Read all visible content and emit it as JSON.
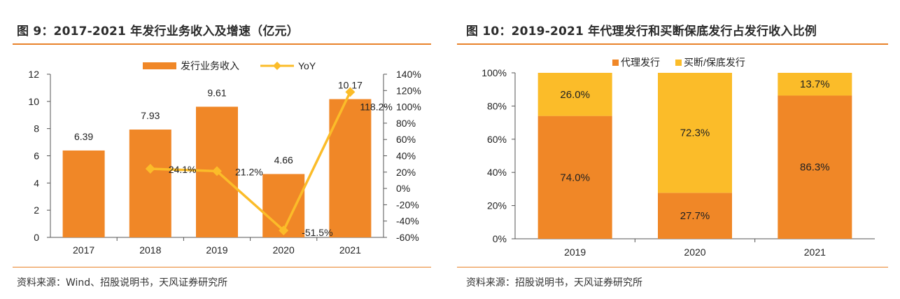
{
  "left": {
    "title": "图 9：2017-2021 年发行业务收入及增速（亿元）",
    "source": "资料来源：Wind、招股说明书，天风证券研究所",
    "colors": {
      "bar": "#f08727",
      "line": "#fbbc29",
      "axis": "#555555",
      "rule": "#e8822a"
    },
    "chart_data": {
      "type": "bar",
      "categories": [
        "2017",
        "2018",
        "2019",
        "2020",
        "2021"
      ],
      "series": [
        {
          "name": "发行业务收入",
          "type": "bar",
          "axis": "left",
          "values": [
            6.39,
            7.93,
            9.61,
            4.66,
            10.17
          ],
          "labels": [
            "6.39",
            "7.93",
            "9.61",
            "4.66",
            "10.17"
          ]
        },
        {
          "name": "YoY",
          "type": "line",
          "axis": "right",
          "values": [
            null,
            24.1,
            21.2,
            -51.5,
            118.2
          ],
          "labels": [
            "",
            "24.1%",
            "21.2%",
            "-51.5%",
            "118.2%"
          ]
        }
      ],
      "y_left": {
        "min": 0,
        "max": 12,
        "ticks": [
          "0",
          "2",
          "4",
          "6",
          "8",
          "10",
          "12"
        ]
      },
      "y_right": {
        "min": -60,
        "max": 140,
        "ticks": [
          "-60%",
          "-40%",
          "-20%",
          "0%",
          "20%",
          "40%",
          "60%",
          "80%",
          "100%",
          "120%",
          "140%"
        ]
      },
      "legend": "top-center"
    }
  },
  "right": {
    "title": "图 10：2019-2021 年代理发行和买断保底发行占发行收入比例",
    "source": "资料来源：招股说明书，天风证券研究所",
    "colors": {
      "agency": "#f08727",
      "buyout": "#fbbc29",
      "axis": "#555555",
      "rule": "#e8822a"
    },
    "chart_data": {
      "type": "bar",
      "stacked": true,
      "categories": [
        "2019",
        "2020",
        "2021"
      ],
      "series": [
        {
          "name": "代理发行",
          "values": [
            74.0,
            27.7,
            86.3
          ],
          "labels": [
            "74.0%",
            "27.7%",
            "86.3%"
          ]
        },
        {
          "name": "买断/保底发行",
          "values": [
            26.0,
            72.3,
            13.7
          ],
          "labels": [
            "26.0%",
            "72.3%",
            "13.7%"
          ]
        }
      ],
      "y": {
        "min": 0,
        "max": 100,
        "ticks": [
          "0%",
          "20%",
          "40%",
          "60%",
          "80%",
          "100%"
        ]
      },
      "legend": "top-center"
    }
  }
}
